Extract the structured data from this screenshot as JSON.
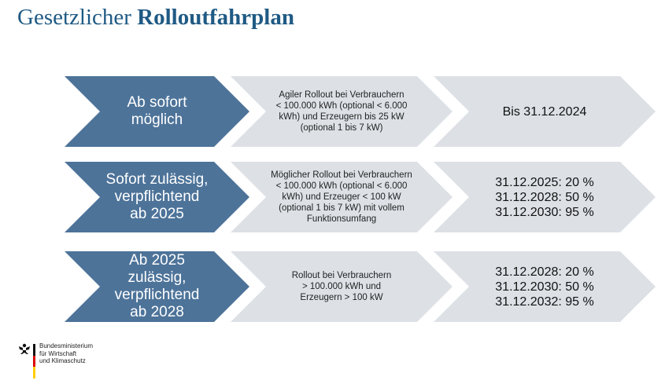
{
  "slide": {
    "title_regular": "Gesetzlicher",
    "title_bold": "Rolloutfahrplan"
  },
  "colors": {
    "title": "#1f5a84",
    "blue_chevron": "#4d7399",
    "grey_chevron": "#dde1e6",
    "text_dark": "#222222"
  },
  "rows": [
    {
      "stage": [
        "Ab sofort",
        "möglich"
      ],
      "description": [
        "Agiler Rollout bei Verbrauchern",
        "< 100.000 kWh (optional < 6.000",
        "kWh) und Erzeugern bis 25 kW",
        "(optional 1 bis 7 kW)"
      ],
      "deadline": [
        "Bis 31.12.2024"
      ]
    },
    {
      "stage": [
        "Sofort zulässig,",
        "verpflichtend",
        "ab 2025"
      ],
      "description": [
        "Möglicher Rollout bei Verbrauchern",
        "< 100.000 kWh (optional < 6.000",
        "kWh) und Erzeuger < 100 kW",
        "(optional 1 bis 7 kW) mit vollem",
        "Funktionsumfang"
      ],
      "deadline": [
        "31.12.2025: 20 %",
        "31.12.2028: 50 %",
        "31.12.2030: 95 %"
      ]
    },
    {
      "stage": [
        "Ab 2025",
        "zulässig,",
        "verpflichtend",
        "ab 2028"
      ],
      "description": [
        "Rollout bei Verbrauchern",
        "> 100.000 kWh und",
        "Erzeugern > 100 kW"
      ],
      "deadline": [
        "31.12.2028: 20 %",
        "31.12.2030: 50 %",
        "31.12.2032: 95 %"
      ]
    }
  ],
  "footer": {
    "logo_icon": "federal-eagle-icon",
    "ministry_lines": [
      "Bundesministerium",
      "für Wirtschaft",
      "und Klimaschutz"
    ]
  }
}
